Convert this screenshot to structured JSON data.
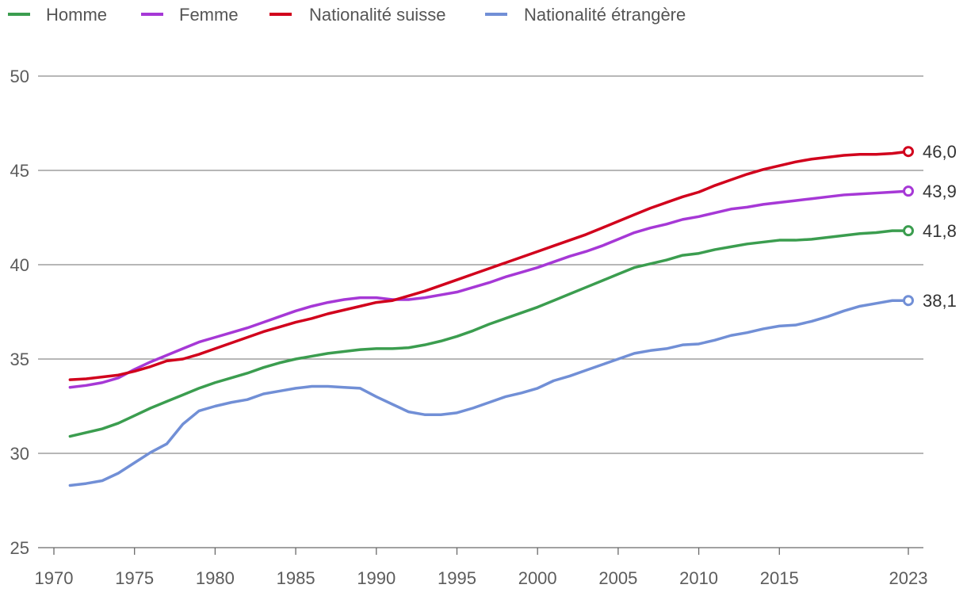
{
  "chart_data": {
    "type": "line",
    "title": "",
    "xlabel": "",
    "ylabel": "",
    "xlim": [
      1970,
      2023
    ],
    "ylim": [
      25,
      50
    ],
    "grid": true,
    "legend_position": "top-left",
    "x_ticks": [
      1970,
      1975,
      1980,
      1985,
      1990,
      1995,
      2000,
      2005,
      2010,
      2015,
      2023
    ],
    "x_tick_labels": [
      "1970",
      "1975",
      "1980",
      "1985",
      "1990",
      "1995",
      "2000",
      "2005",
      "2010",
      "2015",
      "2023"
    ],
    "y_ticks": [
      25,
      30,
      35,
      40,
      45,
      50
    ],
    "y_tick_labels": [
      "25",
      "30",
      "35",
      "40",
      "45",
      "50"
    ],
    "x": [
      1971,
      1972,
      1973,
      1974,
      1975,
      1976,
      1977,
      1978,
      1979,
      1980,
      1981,
      1982,
      1983,
      1984,
      1985,
      1986,
      1987,
      1988,
      1989,
      1990,
      1991,
      1992,
      1993,
      1994,
      1995,
      1996,
      1997,
      1998,
      1999,
      2000,
      2001,
      2002,
      2003,
      2004,
      2005,
      2006,
      2007,
      2008,
      2009,
      2010,
      2011,
      2012,
      2013,
      2014,
      2015,
      2016,
      2017,
      2018,
      2019,
      2020,
      2021,
      2022,
      2023
    ],
    "series": [
      {
        "name": "Homme",
        "color": "#3b9d4f",
        "end_label": "41,8",
        "values": [
          30.9,
          31.1,
          31.3,
          31.6,
          32.0,
          32.4,
          32.75,
          33.1,
          33.45,
          33.75,
          34.0,
          34.25,
          34.55,
          34.8,
          35.0,
          35.15,
          35.3,
          35.4,
          35.5,
          35.55,
          35.55,
          35.6,
          35.75,
          35.95,
          36.2,
          36.5,
          36.85,
          37.15,
          37.45,
          37.75,
          38.1,
          38.45,
          38.8,
          39.15,
          39.5,
          39.85,
          40.05,
          40.25,
          40.5,
          40.6,
          40.8,
          40.95,
          41.1,
          41.2,
          41.3,
          41.3,
          41.35,
          41.45,
          41.55,
          41.65,
          41.7,
          41.8,
          41.8
        ]
      },
      {
        "name": "Femme",
        "color": "#a638d6",
        "end_label": "43,9",
        "values": [
          33.5,
          33.6,
          33.75,
          34.0,
          34.45,
          34.85,
          35.2,
          35.55,
          35.9,
          36.15,
          36.4,
          36.65,
          36.95,
          37.25,
          37.55,
          37.8,
          38.0,
          38.15,
          38.25,
          38.25,
          38.15,
          38.15,
          38.25,
          38.4,
          38.55,
          38.8,
          39.05,
          39.35,
          39.6,
          39.85,
          40.15,
          40.45,
          40.7,
          41.0,
          41.35,
          41.7,
          41.95,
          42.15,
          42.4,
          42.55,
          42.75,
          42.95,
          43.05,
          43.2,
          43.3,
          43.4,
          43.5,
          43.6,
          43.7,
          43.75,
          43.8,
          43.85,
          43.9
        ]
      },
      {
        "name": "Nationalité suisse",
        "color": "#d1001c",
        "end_label": "46,0",
        "values": [
          33.9,
          33.95,
          34.05,
          34.15,
          34.35,
          34.6,
          34.9,
          35.0,
          35.25,
          35.55,
          35.85,
          36.15,
          36.45,
          36.7,
          36.95,
          37.15,
          37.4,
          37.6,
          37.8,
          38.0,
          38.1,
          38.35,
          38.6,
          38.9,
          39.2,
          39.5,
          39.8,
          40.1,
          40.4,
          40.7,
          41.0,
          41.3,
          41.6,
          41.95,
          42.3,
          42.65,
          43.0,
          43.3,
          43.6,
          43.85,
          44.2,
          44.5,
          44.8,
          45.05,
          45.25,
          45.45,
          45.6,
          45.7,
          45.8,
          45.85,
          45.85,
          45.9,
          46.0
        ]
      },
      {
        "name": "Nationalité étrangère",
        "color": "#718fd6",
        "end_label": "38,1",
        "values": [
          28.3,
          28.4,
          28.55,
          28.95,
          29.5,
          30.05,
          30.5,
          31.55,
          32.25,
          32.5,
          32.7,
          32.85,
          33.15,
          33.3,
          33.45,
          33.55,
          33.55,
          33.5,
          33.45,
          33.0,
          32.6,
          32.2,
          32.05,
          32.05,
          32.15,
          32.4,
          32.7,
          33.0,
          33.2,
          33.45,
          33.85,
          34.1,
          34.4,
          34.7,
          35.0,
          35.3,
          35.45,
          35.55,
          35.75,
          35.8,
          36.0,
          36.25,
          36.4,
          36.6,
          36.75,
          36.8,
          37.0,
          37.25,
          37.55,
          37.8,
          37.95,
          38.1,
          38.1
        ]
      }
    ]
  }
}
